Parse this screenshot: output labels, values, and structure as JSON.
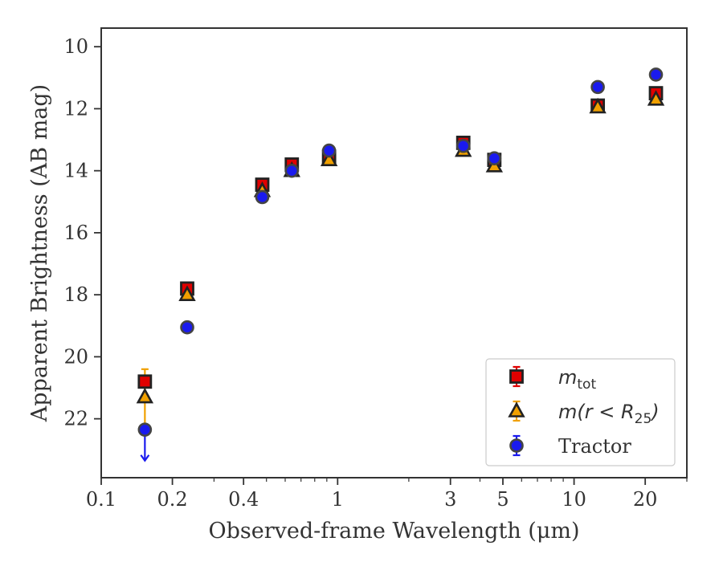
{
  "chart_data": {
    "type": "scatter",
    "xlabel": "Observed-frame Wavelength (μm)",
    "ylabel": "Apparent Brightness (AB mag)",
    "x_scale": "log",
    "xlim": [
      0.1,
      30
    ],
    "ylim": [
      23.9,
      9.4
    ],
    "y_inverted": true,
    "x_ticks": [
      {
        "value": 0.1,
        "label": "0.1"
      },
      {
        "value": 0.2,
        "label": "0.2"
      },
      {
        "value": 0.4,
        "label": "0.4"
      },
      {
        "value": 1,
        "label": "1"
      },
      {
        "value": 3,
        "label": "3"
      },
      {
        "value": 5,
        "label": "5"
      },
      {
        "value": 10,
        "label": "10"
      },
      {
        "value": 20,
        "label": "20"
      }
    ],
    "y_ticks": [
      10,
      12,
      14,
      16,
      18,
      20,
      22
    ],
    "legend_position": "lower-right",
    "grid": false,
    "series": [
      {
        "name": "m_tot",
        "legend_label": {
          "base": "m",
          "sub": "tot"
        },
        "marker": "square",
        "color": "#e00000",
        "edge_color": "#222222",
        "x": [
          0.153,
          0.231,
          0.48,
          0.64,
          0.92,
          3.4,
          4.6,
          12.6,
          22.2
        ],
        "y": [
          20.8,
          17.8,
          14.45,
          13.8,
          13.55,
          13.1,
          13.65,
          11.9,
          11.5
        ],
        "err": [
          0,
          0,
          0.15,
          0.15,
          0.1,
          0.08,
          0.08,
          0.15,
          0.15
        ]
      },
      {
        "name": "m(r < R25)",
        "legend_label": {
          "base": "m(r < R",
          "sub": "25",
          "tail": ")"
        },
        "marker": "triangle",
        "color": "#f0a000",
        "edge_color": "#222222",
        "x": [
          0.153,
          0.231,
          0.48,
          0.64,
          0.92,
          3.4,
          4.6,
          12.6,
          22.2
        ],
        "y": [
          21.3,
          18.0,
          14.65,
          14.0,
          13.65,
          13.35,
          13.85,
          11.95,
          11.7
        ],
        "err": [
          0.9,
          0,
          0.1,
          0.1,
          0.08,
          0.08,
          0.08,
          0.1,
          0.1
        ]
      },
      {
        "name": "Tractor",
        "legend_label": {
          "base": "Tractor"
        },
        "marker": "circle",
        "color": "#1a1aee",
        "edge_color": "#444444",
        "x": [
          0.153,
          0.231,
          0.48,
          0.64,
          0.92,
          3.4,
          4.6,
          12.6,
          22.2
        ],
        "y": [
          22.35,
          19.05,
          14.85,
          14.0,
          13.35,
          13.2,
          13.6,
          11.3,
          10.9
        ],
        "err": [
          0,
          0,
          0.05,
          0.05,
          0.05,
          0.05,
          0.05,
          0.05,
          0.05
        ],
        "upper_limit_index": 0,
        "upper_limit_to": 23.35
      }
    ]
  }
}
